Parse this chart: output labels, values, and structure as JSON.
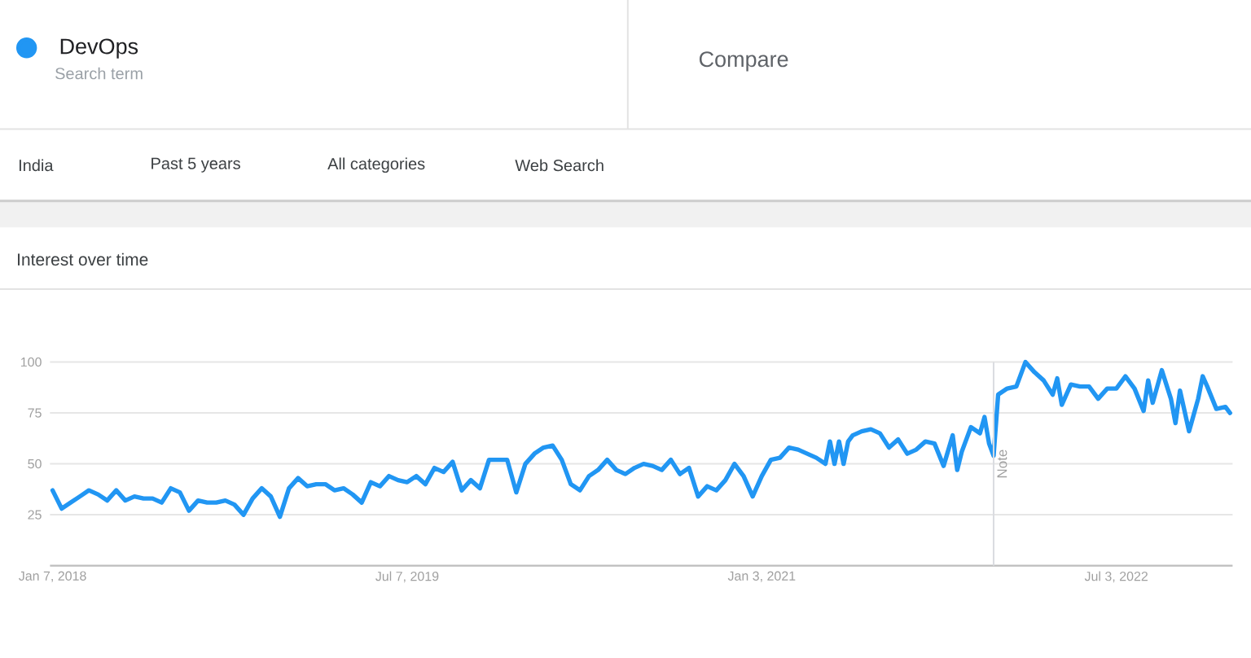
{
  "chart_data": {
    "type": "line",
    "title": "Interest over time",
    "annotations": [
      "Search term",
      "Compare",
      "India",
      "Past 5 years",
      "All categories",
      "Web Search"
    ],
    "x": [
      "2018-01-07",
      "2018-01-21",
      "2018-02-04",
      "2018-02-18",
      "2018-03-04",
      "2018-03-18",
      "2018-04-01",
      "2018-04-15",
      "2018-04-29",
      "2018-05-13",
      "2018-05-27",
      "2018-06-10",
      "2018-06-24",
      "2018-07-08",
      "2018-07-22",
      "2018-08-05",
      "2018-08-19",
      "2018-09-02",
      "2018-09-16",
      "2018-09-30",
      "2018-10-14",
      "2018-10-28",
      "2018-11-11",
      "2018-11-25",
      "2018-12-09",
      "2018-12-23",
      "2019-01-06",
      "2019-01-20",
      "2019-02-03",
      "2019-02-17",
      "2019-03-03",
      "2019-03-17",
      "2019-03-31",
      "2019-04-14",
      "2019-04-28",
      "2019-05-12",
      "2019-05-26",
      "2019-06-09",
      "2019-06-23",
      "2019-07-07",
      "2019-07-21",
      "2019-08-04",
      "2019-08-18",
      "2019-09-01",
      "2019-09-15",
      "2019-09-29",
      "2019-10-13",
      "2019-10-27",
      "2019-11-10",
      "2019-11-24",
      "2019-12-08",
      "2019-12-22",
      "2020-01-05",
      "2020-01-19",
      "2020-02-02",
      "2020-02-16",
      "2020-03-01",
      "2020-03-15",
      "2020-03-29",
      "2020-04-12",
      "2020-04-26",
      "2020-05-10",
      "2020-05-24",
      "2020-06-07",
      "2020-06-21",
      "2020-07-05",
      "2020-07-19",
      "2020-08-02",
      "2020-08-16",
      "2020-08-30",
      "2020-09-13",
      "2020-09-27",
      "2020-10-11",
      "2020-10-25",
      "2020-11-08",
      "2020-11-22",
      "2020-12-06",
      "2020-12-20",
      "2021-01-03",
      "2021-01-17",
      "2021-01-31",
      "2021-02-14",
      "2021-02-28",
      "2021-03-14",
      "2021-03-28",
      "2021-04-11",
      "2021-04-18",
      "2021-04-25",
      "2021-05-02",
      "2021-05-09",
      "2021-05-16",
      "2021-05-23",
      "2021-06-06",
      "2021-06-20",
      "2021-07-04",
      "2021-07-18",
      "2021-08-01",
      "2021-08-15",
      "2021-08-29",
      "2021-09-12",
      "2021-09-26",
      "2021-10-10",
      "2021-10-24",
      "2021-10-31",
      "2021-11-07",
      "2021-11-21",
      "2021-12-05",
      "2021-12-12",
      "2021-12-19",
      "2021-12-26",
      "2022-01-02",
      "2022-01-16",
      "2022-01-30",
      "2022-02-13",
      "2022-02-27",
      "2022-03-13",
      "2022-03-27",
      "2022-04-03",
      "2022-04-10",
      "2022-04-24",
      "2022-05-08",
      "2022-05-22",
      "2022-06-05",
      "2022-06-19",
      "2022-07-03",
      "2022-07-17",
      "2022-07-31",
      "2022-08-14",
      "2022-08-21",
      "2022-08-28",
      "2022-09-11",
      "2022-09-25",
      "2022-10-02",
      "2022-10-09",
      "2022-10-23",
      "2022-11-06",
      "2022-11-13",
      "2022-11-20",
      "2022-12-04",
      "2022-12-18",
      "2022-12-25"
    ],
    "series": [
      {
        "name": "DevOps",
        "color": "#2196f3",
        "values": [
          37,
          28,
          31,
          34,
          37,
          35,
          32,
          37,
          32,
          34,
          33,
          33,
          31,
          38,
          36,
          27,
          32,
          31,
          31,
          32,
          30,
          25,
          33,
          38,
          34,
          24,
          38,
          43,
          39,
          40,
          40,
          37,
          38,
          35,
          31,
          41,
          39,
          44,
          42,
          41,
          44,
          40,
          48,
          46,
          51,
          37,
          42,
          38,
          52,
          52,
          52,
          36,
          50,
          55,
          58,
          59,
          52,
          40,
          37,
          44,
          47,
          52,
          47,
          45,
          48,
          50,
          49,
          47,
          52,
          45,
          48,
          34,
          39,
          37,
          42,
          50,
          44,
          34,
          44,
          52,
          53,
          58,
          57,
          55,
          53,
          50,
          61,
          50,
          61,
          50,
          61,
          64,
          66,
          67,
          65,
          58,
          62,
          55,
          57,
          61,
          60,
          49,
          64,
          47,
          56,
          68,
          65,
          73,
          60,
          54,
          84,
          87,
          88,
          100,
          95,
          91,
          84,
          92,
          79,
          89,
          88,
          88,
          82,
          87,
          87,
          93,
          87,
          76,
          91,
          80,
          96,
          82,
          70,
          86,
          66,
          82,
          93,
          88,
          77,
          78,
          75
        ]
      }
    ],
    "xlim": [
      "2018-01-03",
      "2022-12-29"
    ],
    "ylim": [
      0,
      100
    ],
    "xticks": [
      {
        "value": "2018-01-07",
        "label": "Jan 7, 2018"
      },
      {
        "value": "2019-07-07",
        "label": "Jul 7, 2019"
      },
      {
        "value": "2021-01-03",
        "label": "Jan 3, 2021"
      },
      {
        "value": "2022-07-03",
        "label": "Jul 3, 2022"
      }
    ],
    "yticks": [
      25,
      50,
      75,
      100
    ],
    "ref_lines": [
      {
        "axis": "x",
        "value": "2021-12-26",
        "label": "Note",
        "color": "#dadce0"
      }
    ],
    "grid": "y",
    "legend": "top left"
  }
}
